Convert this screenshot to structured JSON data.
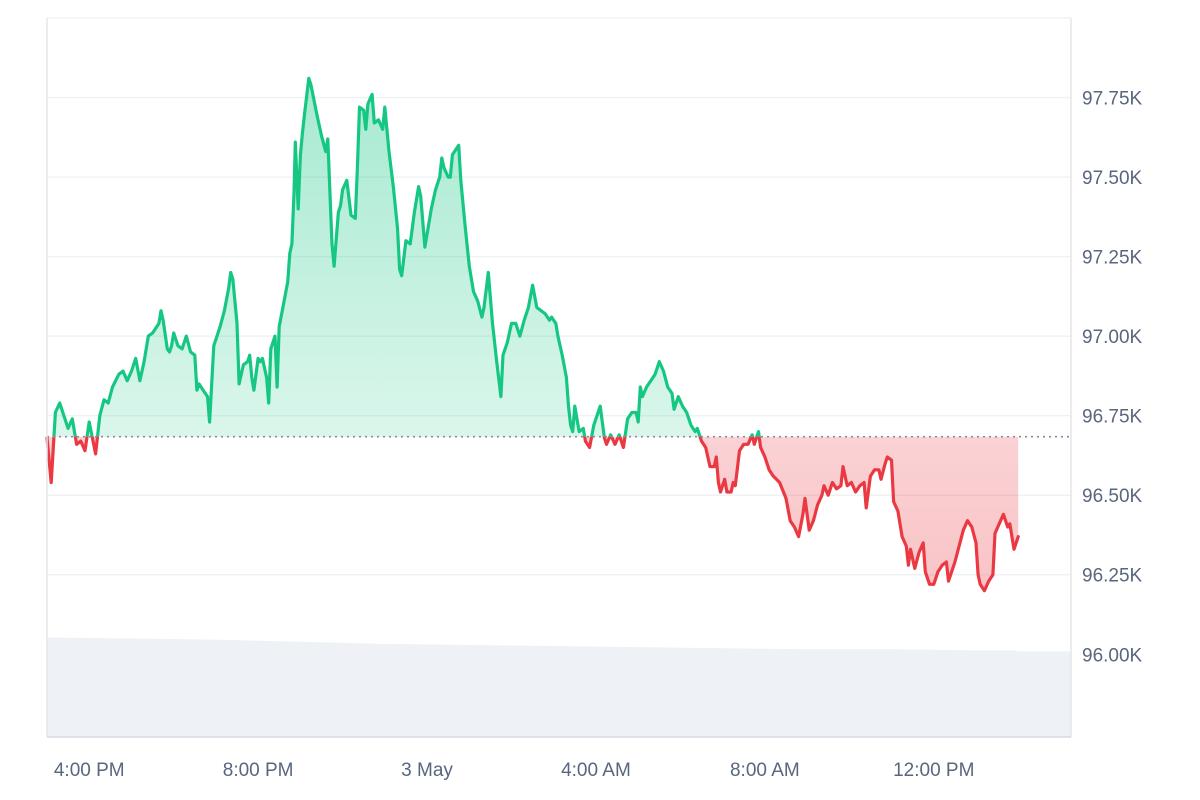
{
  "chart_data": {
    "type": "line",
    "baseline": 96684,
    "ylim": [
      95740,
      98000
    ],
    "y_ticks": [
      96000,
      96250,
      96500,
      96750,
      97000,
      97250,
      97500,
      97750
    ],
    "y_tick_labels": [
      "96.00K",
      "96.25K",
      "96.50K",
      "96.75K",
      "97.00K",
      "97.25K",
      "97.50K",
      "97.75K"
    ],
    "x_range": [
      0,
      24.25
    ],
    "x_ticks": [
      1,
      5,
      9,
      13,
      17,
      21
    ],
    "x_tick_labels": [
      "4:00 PM",
      "8:00 PM",
      "3 May",
      "4:00 AM",
      "8:00 AM",
      "12:00 PM"
    ],
    "grid": true,
    "colors": {
      "up": "#16c784",
      "down": "#ea3943",
      "volume": "#eef1f5",
      "grid": "#eff2f5",
      "baseline": "#858ca2"
    },
    "series": [
      {
        "values": [
          [
            0.0,
            96680
          ],
          [
            0.1,
            96540
          ],
          [
            0.2,
            96760
          ],
          [
            0.3,
            96790
          ],
          [
            0.4,
            96750
          ],
          [
            0.5,
            96710
          ],
          [
            0.6,
            96740
          ],
          [
            0.7,
            96660
          ],
          [
            0.8,
            96670
          ],
          [
            0.9,
            96640
          ],
          [
            1.0,
            96730
          ],
          [
            1.15,
            96630
          ],
          [
            1.25,
            96750
          ],
          [
            1.35,
            96800
          ],
          [
            1.45,
            96790
          ],
          [
            1.55,
            96840
          ],
          [
            1.7,
            96880
          ],
          [
            1.8,
            96890
          ],
          [
            1.9,
            96860
          ],
          [
            2.0,
            96890
          ],
          [
            2.1,
            96930
          ],
          [
            2.2,
            96860
          ],
          [
            2.3,
            96920
          ],
          [
            2.4,
            97000
          ],
          [
            2.5,
            97010
          ],
          [
            2.6,
            97030
          ],
          [
            2.65,
            97040
          ],
          [
            2.7,
            97080
          ],
          [
            2.75,
            97050
          ],
          [
            2.85,
            96960
          ],
          [
            2.9,
            96950
          ],
          [
            2.95,
            96970
          ],
          [
            3.0,
            97010
          ],
          [
            3.1,
            96970
          ],
          [
            3.2,
            96960
          ],
          [
            3.3,
            97000
          ],
          [
            3.4,
            96950
          ],
          [
            3.5,
            96940
          ],
          [
            3.55,
            96830
          ],
          [
            3.6,
            96850
          ],
          [
            3.7,
            96830
          ],
          [
            3.8,
            96810
          ],
          [
            3.85,
            96730
          ],
          [
            3.95,
            96970
          ],
          [
            4.1,
            97030
          ],
          [
            4.2,
            97080
          ],
          [
            4.3,
            97150
          ],
          [
            4.35,
            97200
          ],
          [
            4.4,
            97180
          ],
          [
            4.5,
            97040
          ],
          [
            4.55,
            96850
          ],
          [
            4.65,
            96910
          ],
          [
            4.75,
            96920
          ],
          [
            4.8,
            96940
          ],
          [
            4.85,
            96870
          ],
          [
            4.9,
            96830
          ],
          [
            5.0,
            96930
          ],
          [
            5.05,
            96920
          ],
          [
            5.1,
            96930
          ],
          [
            5.2,
            96870
          ],
          [
            5.25,
            96790
          ],
          [
            5.3,
            96960
          ],
          [
            5.4,
            97000
          ],
          [
            5.45,
            96840
          ],
          [
            5.5,
            97030
          ],
          [
            5.6,
            97100
          ],
          [
            5.7,
            97170
          ],
          [
            5.75,
            97260
          ],
          [
            5.8,
            97290
          ],
          [
            5.85,
            97450
          ],
          [
            5.88,
            97610
          ],
          [
            5.95,
            97400
          ],
          [
            6.0,
            97570
          ],
          [
            6.05,
            97640
          ],
          [
            6.1,
            97700
          ],
          [
            6.2,
            97810
          ],
          [
            6.25,
            97790
          ],
          [
            6.4,
            97690
          ],
          [
            6.5,
            97630
          ],
          [
            6.6,
            97580
          ],
          [
            6.65,
            97620
          ],
          [
            6.75,
            97290
          ],
          [
            6.8,
            97220
          ],
          [
            6.9,
            97390
          ],
          [
            6.95,
            97410
          ],
          [
            7.0,
            97460
          ],
          [
            7.1,
            97490
          ],
          [
            7.2,
            97380
          ],
          [
            7.3,
            97370
          ],
          [
            7.35,
            97530
          ],
          [
            7.4,
            97720
          ],
          [
            7.5,
            97710
          ],
          [
            7.55,
            97650
          ],
          [
            7.6,
            97730
          ],
          [
            7.7,
            97760
          ],
          [
            7.75,
            97670
          ],
          [
            7.85,
            97680
          ],
          [
            7.95,
            97650
          ],
          [
            8.0,
            97720
          ],
          [
            8.1,
            97580
          ],
          [
            8.2,
            97470
          ],
          [
            8.3,
            97340
          ],
          [
            8.35,
            97210
          ],
          [
            8.4,
            97190
          ],
          [
            8.5,
            97300
          ],
          [
            8.6,
            97290
          ],
          [
            8.7,
            97390
          ],
          [
            8.8,
            97470
          ],
          [
            8.85,
            97440
          ],
          [
            8.95,
            97280
          ],
          [
            9.1,
            97400
          ],
          [
            9.2,
            97460
          ],
          [
            9.3,
            97500
          ],
          [
            9.35,
            97560
          ],
          [
            9.4,
            97530
          ],
          [
            9.5,
            97500
          ],
          [
            9.55,
            97500
          ],
          [
            9.6,
            97570
          ],
          [
            9.7,
            97590
          ],
          [
            9.75,
            97600
          ],
          [
            9.8,
            97490
          ],
          [
            9.9,
            97350
          ],
          [
            10.0,
            97220
          ],
          [
            10.1,
            97140
          ],
          [
            10.2,
            97110
          ],
          [
            10.3,
            97060
          ],
          [
            10.35,
            97090
          ],
          [
            10.45,
            97200
          ],
          [
            10.55,
            97040
          ],
          [
            10.65,
            96920
          ],
          [
            10.75,
            96810
          ],
          [
            10.8,
            96940
          ],
          [
            10.9,
            96980
          ],
          [
            11.0,
            97040
          ],
          [
            11.1,
            97040
          ],
          [
            11.2,
            97000
          ],
          [
            11.3,
            97050
          ],
          [
            11.4,
            97090
          ],
          [
            11.5,
            97160
          ],
          [
            11.6,
            97090
          ],
          [
            11.7,
            97080
          ],
          [
            11.8,
            97070
          ],
          [
            11.9,
            97050
          ],
          [
            11.95,
            97060
          ],
          [
            12.05,
            97040
          ],
          [
            12.1,
            97000
          ],
          [
            12.2,
            96940
          ],
          [
            12.3,
            96870
          ],
          [
            12.35,
            96780
          ],
          [
            12.4,
            96720
          ],
          [
            12.45,
            96700
          ],
          [
            12.5,
            96780
          ],
          [
            12.6,
            96700
          ],
          [
            12.7,
            96710
          ],
          [
            12.75,
            96670
          ],
          [
            12.85,
            96650
          ],
          [
            12.95,
            96720
          ],
          [
            13.1,
            96780
          ],
          [
            13.2,
            96680
          ],
          [
            13.25,
            96660
          ],
          [
            13.35,
            96690
          ],
          [
            13.45,
            96660
          ],
          [
            13.55,
            96690
          ],
          [
            13.65,
            96650
          ],
          [
            13.75,
            96740
          ],
          [
            13.85,
            96760
          ],
          [
            13.95,
            96760
          ],
          [
            14.0,
            96730
          ],
          [
            14.05,
            96840
          ],
          [
            14.1,
            96810
          ],
          [
            14.2,
            96840
          ],
          [
            14.3,
            96860
          ],
          [
            14.4,
            96880
          ],
          [
            14.5,
            96920
          ],
          [
            14.6,
            96890
          ],
          [
            14.7,
            96840
          ],
          [
            14.8,
            96820
          ],
          [
            14.85,
            96770
          ],
          [
            14.95,
            96810
          ],
          [
            15.05,
            96780
          ],
          [
            15.15,
            96760
          ],
          [
            15.25,
            96720
          ],
          [
            15.35,
            96700
          ],
          [
            15.4,
            96710
          ],
          [
            15.5,
            96670
          ],
          [
            15.6,
            96650
          ],
          [
            15.7,
            96590
          ],
          [
            15.8,
            96590
          ],
          [
            15.85,
            96620
          ],
          [
            15.9,
            96540
          ],
          [
            15.95,
            96510
          ],
          [
            16.05,
            96550
          ],
          [
            16.1,
            96510
          ],
          [
            16.2,
            96510
          ],
          [
            16.25,
            96540
          ],
          [
            16.3,
            96530
          ],
          [
            16.4,
            96640
          ],
          [
            16.5,
            96660
          ],
          [
            16.6,
            96660
          ],
          [
            16.7,
            96690
          ],
          [
            16.75,
            96660
          ],
          [
            16.85,
            96700
          ],
          [
            16.9,
            96650
          ],
          [
            17.0,
            96620
          ],
          [
            17.1,
            96580
          ],
          [
            17.2,
            96560
          ],
          [
            17.35,
            96540
          ],
          [
            17.5,
            96490
          ],
          [
            17.6,
            96420
          ],
          [
            17.7,
            96400
          ],
          [
            17.8,
            96370
          ],
          [
            17.9,
            96440
          ],
          [
            17.95,
            96490
          ],
          [
            18.05,
            96390
          ],
          [
            18.15,
            96420
          ],
          [
            18.25,
            96470
          ],
          [
            18.35,
            96500
          ],
          [
            18.4,
            96530
          ],
          [
            18.5,
            96500
          ],
          [
            18.6,
            96540
          ],
          [
            18.7,
            96520
          ],
          [
            18.8,
            96530
          ],
          [
            18.85,
            96590
          ],
          [
            18.95,
            96530
          ],
          [
            19.05,
            96540
          ],
          [
            19.15,
            96510
          ],
          [
            19.25,
            96530
          ],
          [
            19.35,
            96540
          ],
          [
            19.4,
            96460
          ],
          [
            19.5,
            96560
          ],
          [
            19.6,
            96580
          ],
          [
            19.7,
            96580
          ],
          [
            19.75,
            96550
          ],
          [
            19.85,
            96600
          ],
          [
            19.9,
            96620
          ],
          [
            20.0,
            96610
          ],
          [
            20.05,
            96480
          ],
          [
            20.15,
            96450
          ],
          [
            20.25,
            96370
          ],
          [
            20.35,
            96340
          ],
          [
            20.4,
            96280
          ],
          [
            20.45,
            96330
          ],
          [
            20.55,
            96270
          ],
          [
            20.65,
            96320
          ],
          [
            20.75,
            96350
          ],
          [
            20.8,
            96260
          ],
          [
            20.9,
            96220
          ],
          [
            21.0,
            96220
          ],
          [
            21.1,
            96260
          ],
          [
            21.2,
            96280
          ],
          [
            21.3,
            96290
          ],
          [
            21.35,
            96230
          ],
          [
            21.5,
            96290
          ],
          [
            21.6,
            96340
          ],
          [
            21.7,
            96390
          ],
          [
            21.8,
            96420
          ],
          [
            21.9,
            96400
          ],
          [
            22.0,
            96350
          ],
          [
            22.05,
            96250
          ],
          [
            22.1,
            96220
          ],
          [
            22.2,
            96200
          ],
          [
            22.3,
            96230
          ],
          [
            22.4,
            96250
          ],
          [
            22.45,
            96380
          ],
          [
            22.55,
            96410
          ],
          [
            22.65,
            96440
          ],
          [
            22.75,
            96400
          ],
          [
            22.8,
            96410
          ],
          [
            22.9,
            96330
          ],
          [
            23.0,
            96370
          ]
        ]
      }
    ],
    "volume": [
      [
        0,
        0.93
      ],
      [
        2,
        0.92
      ],
      [
        4,
        0.91
      ],
      [
        6,
        0.89
      ],
      [
        8,
        0.87
      ],
      [
        10,
        0.86
      ],
      [
        12,
        0.85
      ],
      [
        14,
        0.84
      ],
      [
        16,
        0.83
      ],
      [
        18,
        0.82
      ],
      [
        20,
        0.82
      ],
      [
        22,
        0.81
      ],
      [
        22.9,
        0.81
      ],
      [
        23.05,
        0.8
      ],
      [
        24.25,
        0.8
      ]
    ]
  }
}
